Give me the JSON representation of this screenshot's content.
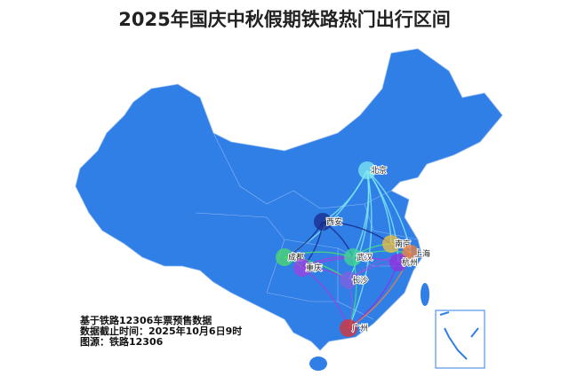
{
  "title": "2025年国庆中秋假期铁路热门出行区间",
  "notes": {
    "line1": "基于铁路12306车票预售数据",
    "line2": "数据截止时间：2025年10月6日9时",
    "line3": "图源：铁路12306"
  },
  "colors": {
    "land": "#2f7fe6",
    "border": "#8fb8f0",
    "background": "#ffffff"
  },
  "cities": [
    {
      "name": "北京",
      "color": "#7fe8f0"
    },
    {
      "name": "西安",
      "color": "#1a2a8a"
    },
    {
      "name": "成都",
      "color": "#4ddc6a"
    },
    {
      "name": "重庆",
      "color": "#a040e0"
    },
    {
      "name": "武汉",
      "color": "#40d890"
    },
    {
      "name": "长沙",
      "color": "#8060e0"
    },
    {
      "name": "南京",
      "color": "#f0c040"
    },
    {
      "name": "上海",
      "color": "#f08040"
    },
    {
      "name": "杭州",
      "color": "#9030e0"
    },
    {
      "name": "广州",
      "color": "#e03030"
    }
  ],
  "routes": [
    [
      "北京",
      "西安"
    ],
    [
      "北京",
      "南京"
    ],
    [
      "北京",
      "上海"
    ],
    [
      "北京",
      "武汉"
    ],
    [
      "北京",
      "长沙"
    ],
    [
      "北京",
      "成都"
    ],
    [
      "北京",
      "广州"
    ],
    [
      "北京",
      "杭州"
    ],
    [
      "西安",
      "成都"
    ],
    [
      "西安",
      "南京"
    ],
    [
      "西安",
      "重庆"
    ],
    [
      "西安",
      "武汉"
    ],
    [
      "成都",
      "重庆"
    ],
    [
      "成都",
      "武汉"
    ],
    [
      "成都",
      "长沙"
    ],
    [
      "重庆",
      "长沙"
    ],
    [
      "重庆",
      "杭州"
    ],
    [
      "重庆",
      "广州"
    ],
    [
      "重庆",
      "武汉"
    ],
    [
      "武汉",
      "南京"
    ],
    [
      "武汉",
      "上海"
    ],
    [
      "武汉",
      "广州"
    ],
    [
      "长沙",
      "广州"
    ],
    [
      "长沙",
      "杭州"
    ],
    [
      "长沙",
      "上海"
    ],
    [
      "南京",
      "上海"
    ],
    [
      "上海",
      "杭州"
    ],
    [
      "杭州",
      "广州"
    ],
    [
      "上海",
      "广州"
    ]
  ]
}
